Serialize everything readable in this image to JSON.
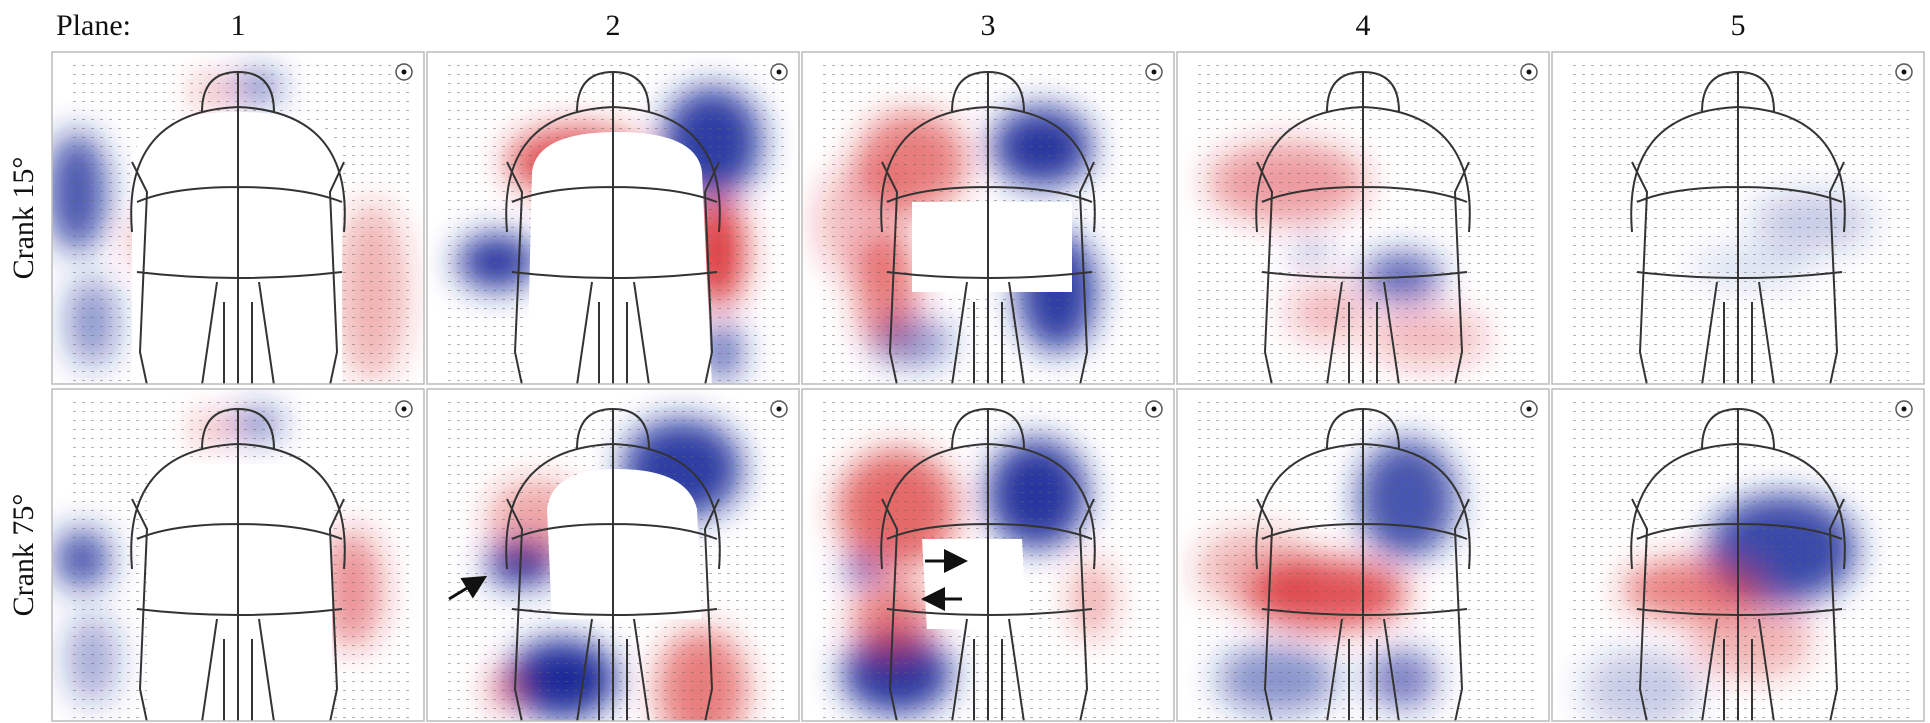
{
  "header": {
    "label": "Plane:",
    "planes": [
      "1",
      "2",
      "3",
      "4",
      "5"
    ]
  },
  "rows": [
    "Crank 15°",
    "Crank 75°"
  ]
}
